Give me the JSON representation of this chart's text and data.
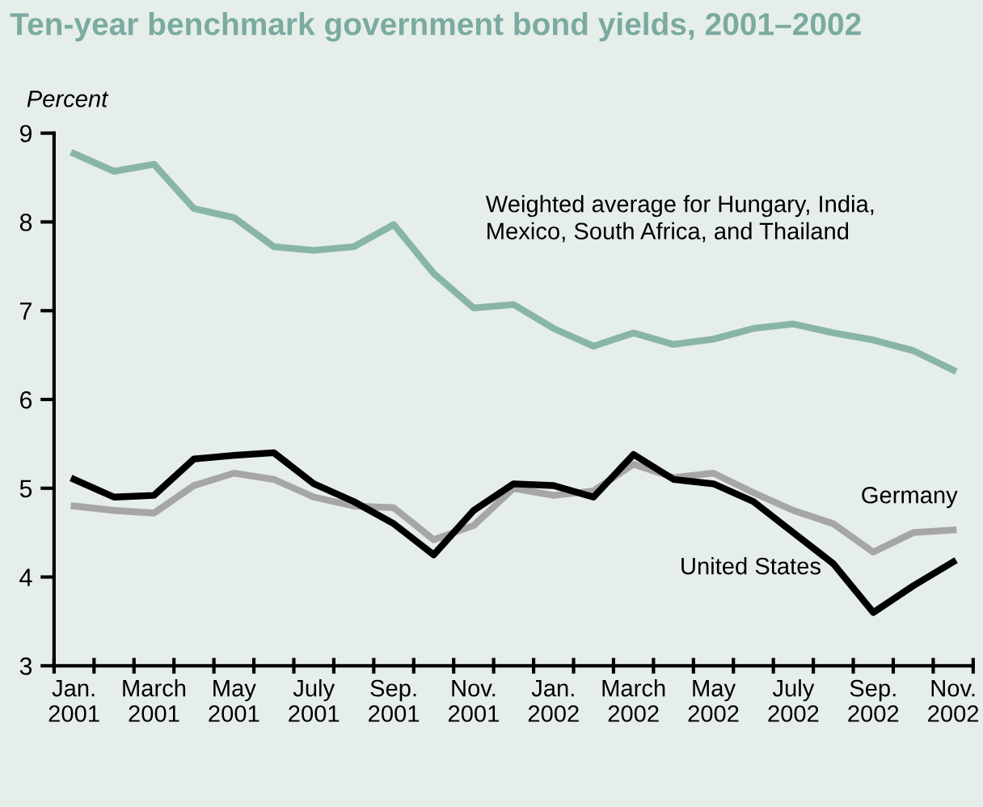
{
  "chart_data": {
    "type": "line",
    "title": "Ten-year benchmark government bond yields, 2001–2002",
    "ylabel": "Percent",
    "categories": [
      "Jan.\n2001",
      null,
      "March\n2001",
      null,
      "May\n2001",
      null,
      "July\n2001",
      null,
      "Sep.\n2001",
      null,
      "Nov.\n2001",
      null,
      "Jan.\n2002",
      null,
      "March\n2002",
      null,
      "May\n2002",
      null,
      "July\n2002",
      null,
      "Sep.\n2002",
      null,
      "Nov.\n2002"
    ],
    "series": [
      {
        "name": "Weighted average for Hungary, India,\nMexico, South Africa, and Thailand",
        "color": "#88b5a8",
        "values": [
          8.77,
          8.57,
          8.65,
          8.15,
          8.05,
          7.72,
          7.68,
          7.72,
          7.97,
          7.42,
          7.03,
          7.07,
          6.8,
          6.6,
          6.75,
          6.62,
          6.68,
          6.8,
          6.85,
          6.75,
          6.67,
          6.55,
          6.33
        ]
      },
      {
        "name": "United States",
        "color": "#000000",
        "values": [
          5.1,
          4.9,
          4.92,
          5.33,
          5.37,
          5.4,
          5.05,
          4.85,
          4.6,
          4.25,
          4.75,
          5.05,
          5.03,
          4.9,
          5.38,
          5.1,
          5.05,
          4.85,
          4.5,
          4.15,
          3.6,
          3.9,
          4.17
        ]
      },
      {
        "name": "Germany",
        "color": "#a6a6a6",
        "values": [
          4.8,
          4.75,
          4.72,
          5.03,
          5.17,
          5.1,
          4.9,
          4.8,
          4.78,
          4.42,
          4.58,
          5.0,
          4.92,
          4.97,
          5.27,
          5.12,
          5.17,
          4.95,
          4.75,
          4.6,
          4.28,
          4.5,
          4.53
        ]
      }
    ],
    "ylim": [
      3,
      9
    ],
    "yticks": [
      3,
      4,
      5,
      6,
      7,
      8,
      9
    ],
    "grid": false,
    "legend": false
  }
}
